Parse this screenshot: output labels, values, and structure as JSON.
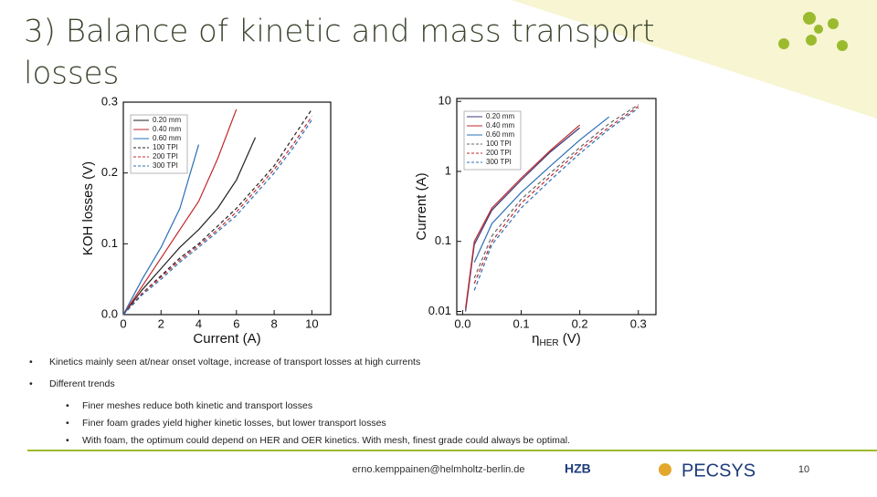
{
  "title_lines": [
    "3) Balance of kinetic and mass transport",
    "losses"
  ],
  "bullets": [
    {
      "text": "Kinetics mainly seen at/near onset voltage, increase of transport losses at high currents",
      "sub": []
    },
    {
      "text": "Different trends",
      "sub": [
        "Finer meshes reduce both kinetic and transport losses",
        "Finer foam grades yield higher kinetic losses, but lower transport losses",
        "With foam, the optimum could depend on HER and OER kinetics. With mesh, finest grade could always be optimal."
      ]
    }
  ],
  "footer": {
    "email": "erno.kemppainen@helmholtz-berlin.de",
    "logo_1": "HZB",
    "logo_2": "PECSYS",
    "page": "10"
  },
  "chart_data": [
    {
      "type": "line",
      "x_label": [
        "Current (A)"
      ],
      "y_label": "KOH losses (V)",
      "x": [
        0,
        1,
        2,
        3,
        4,
        5,
        6,
        7,
        8,
        9,
        10
      ],
      "xlim": [
        0,
        11
      ],
      "ylim": [
        0,
        0.3
      ],
      "xticks": [
        0,
        2,
        4,
        6,
        8,
        10
      ],
      "yticks": [
        {
          "value": 0,
          "label": "0.0"
        },
        0.1,
        0.2,
        0.3
      ],
      "log_y": false,
      "legend": "top-left",
      "series": [
        {
          "name": "0.20 mm",
          "color": "#222222",
          "dash": false,
          "values": [
            0,
            0.035,
            0.065,
            0.095,
            0.12,
            0.15,
            0.19,
            0.25,
            null,
            null,
            null
          ]
        },
        {
          "name": "0.40 mm",
          "color": "#c0282d",
          "dash": false,
          "values": [
            0,
            0.04,
            0.08,
            0.12,
            0.16,
            0.22,
            0.29,
            null,
            null,
            null,
            null
          ]
        },
        {
          "name": "0.60 mm",
          "color": "#2a6fb5",
          "dash": false,
          "values": [
            0,
            0.05,
            0.095,
            0.15,
            0.24,
            null,
            null,
            null,
            null,
            null,
            null
          ]
        },
        {
          "name": "100 TPI",
          "color": "#222222",
          "dash": true,
          "values": [
            0,
            0.03,
            0.055,
            0.08,
            0.1,
            0.125,
            0.15,
            0.18,
            0.21,
            0.25,
            0.29
          ]
        },
        {
          "name": "200 TPI",
          "color": "#c0282d",
          "dash": true,
          "values": [
            0,
            0.03,
            0.053,
            0.077,
            0.098,
            0.12,
            0.145,
            0.175,
            0.205,
            0.24,
            0.28
          ]
        },
        {
          "name": "300 TPI",
          "color": "#2a6fb5",
          "dash": true,
          "values": [
            0,
            0.028,
            0.05,
            0.074,
            0.095,
            0.117,
            0.14,
            0.17,
            0.2,
            0.235,
            0.275
          ]
        }
      ]
    },
    {
      "type": "line",
      "x_label": [
        "η",
        "HER",
        " (V)"
      ],
      "y_label": "Current (A)",
      "x": [
        0.005,
        0.02,
        0.05,
        0.1,
        0.15,
        0.2,
        0.25,
        0.3
      ],
      "xlim": [
        -0.01,
        0.33
      ],
      "ylim": [
        0.009,
        11
      ],
      "xticks": [
        {
          "value": 0,
          "label": "0.0"
        },
        0.1,
        0.2,
        0.3
      ],
      "yticks": [
        0.01,
        0.1,
        1,
        10
      ],
      "log_y": true,
      "legend": "top-left",
      "series": [
        {
          "name": "0.20 mm",
          "color": "#3a3a7a",
          "dash": false,
          "values": [
            0.01,
            0.09,
            0.28,
            0.75,
            1.9,
            4.2,
            null,
            null
          ]
        },
        {
          "name": "0.40 mm",
          "color": "#c0282d",
          "dash": false,
          "values": [
            0.011,
            0.1,
            0.3,
            0.8,
            2,
            4.6,
            null,
            null
          ]
        },
        {
          "name": "0.60 mm",
          "color": "#2a6fb5",
          "dash": false,
          "values": [
            null,
            0.05,
            0.18,
            0.5,
            1.2,
            2.8,
            6,
            null
          ]
        },
        {
          "name": "100 TPI",
          "color": "#666666",
          "dash": true,
          "values": [
            null,
            0.03,
            0.12,
            0.4,
            0.95,
            2.2,
            4.8,
            9
          ]
        },
        {
          "name": "200 TPI",
          "color": "#c0282d",
          "dash": true,
          "values": [
            null,
            0.025,
            0.1,
            0.35,
            0.85,
            2,
            4.3,
            8.5
          ]
        },
        {
          "name": "300 TPI",
          "color": "#2a6fb5",
          "dash": true,
          "values": [
            null,
            0.02,
            0.09,
            0.3,
            0.75,
            1.8,
            4,
            8
          ]
        }
      ]
    }
  ]
}
